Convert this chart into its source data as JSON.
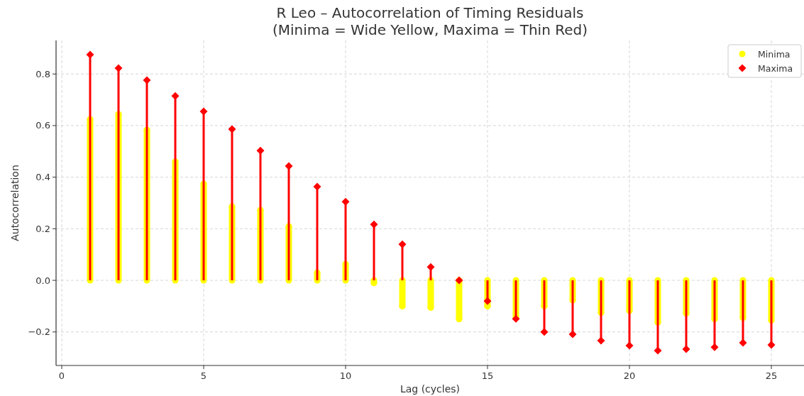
{
  "chart_data": {
    "type": "lollipop",
    "title": "R Leo – Autocorrelation of Timing Residuals",
    "subtitle": "(Minima = Wide Yellow, Maxima = Thin Red)",
    "xlabel": "Lag (cycles)",
    "ylabel": "Autocorrelation",
    "x": [
      1,
      2,
      3,
      4,
      5,
      6,
      7,
      8,
      9,
      10,
      11,
      12,
      13,
      14,
      15,
      16,
      17,
      18,
      19,
      20,
      21,
      22,
      23,
      24,
      25
    ],
    "series": [
      {
        "name": "Minima",
        "color": "#ffff00",
        "marker": "circle",
        "values": [
          0.624,
          0.644,
          0.583,
          0.46,
          0.374,
          0.286,
          0.272,
          0.209,
          0.03,
          0.063,
          -0.01,
          -0.1,
          -0.105,
          -0.15,
          -0.1,
          -0.14,
          -0.1,
          -0.077,
          -0.125,
          -0.118,
          -0.163,
          -0.128,
          -0.15,
          -0.145,
          -0.155
        ]
      },
      {
        "name": "Maxima",
        "color": "#ff0000",
        "marker": "diamond",
        "values": [
          0.875,
          0.823,
          0.776,
          0.715,
          0.655,
          0.586,
          0.503,
          0.443,
          0.363,
          0.305,
          0.217,
          0.14,
          0.052,
          0.0,
          -0.08,
          -0.149,
          -0.2,
          -0.209,
          -0.234,
          -0.253,
          -0.272,
          -0.267,
          -0.259,
          -0.242,
          -0.25
        ]
      }
    ],
    "xlim": [
      -0.2,
      26.15
    ],
    "xticks": [
      0,
      5,
      10,
      15,
      20,
      25
    ],
    "ylim": [
      -0.33,
      0.93
    ],
    "yticks": [
      {
        "value": -0.2,
        "label": "−0.2"
      },
      {
        "value": 0,
        "label": "0.0"
      },
      0.2,
      0.4,
      0.6,
      0.8
    ],
    "grid": true,
    "legend": "top right"
  }
}
